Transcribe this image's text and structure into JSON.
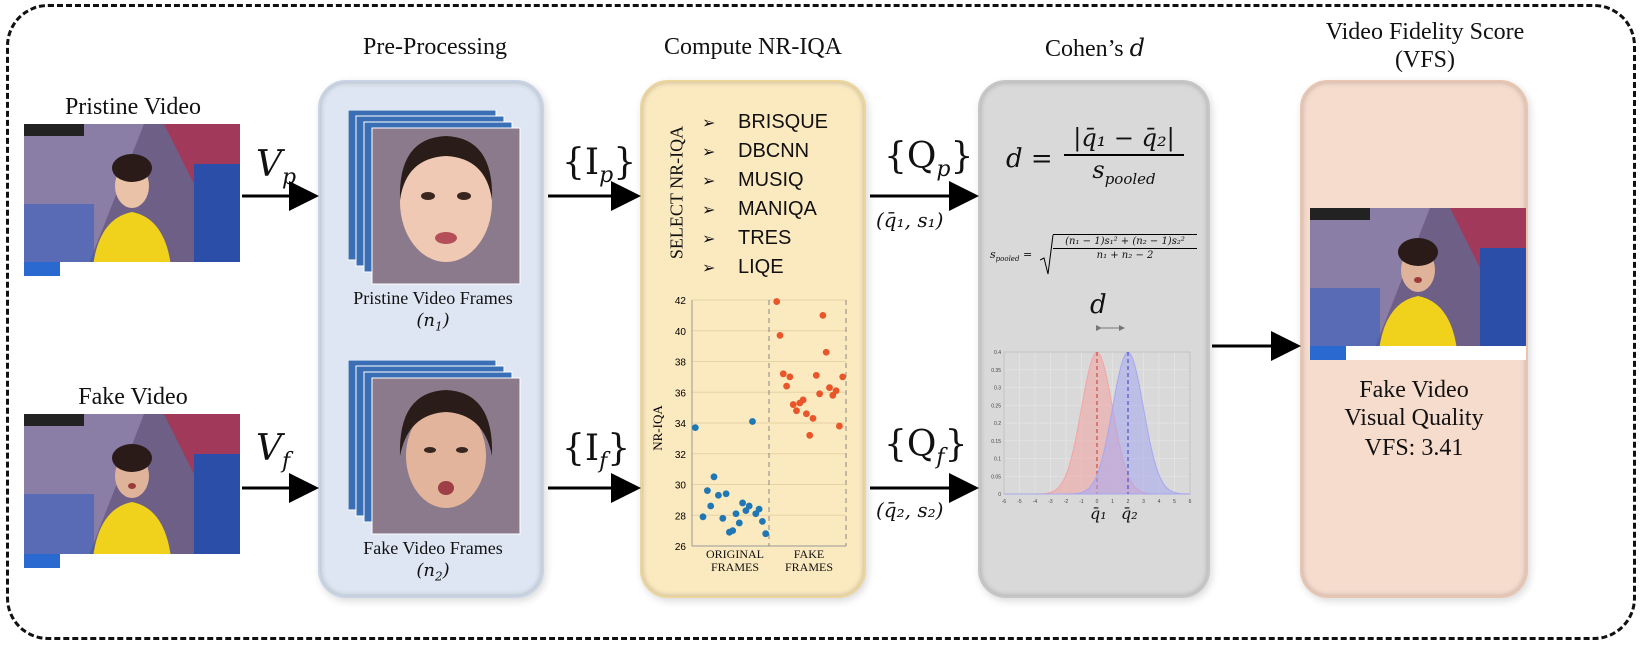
{
  "stages": {
    "preprocessing": "Pre-Processing",
    "nriqa": "Compute NR-IQA",
    "cohen": "Cohen’s",
    "cohen_sym": "d",
    "vfs_line1": "Video Fidelity Score",
    "vfs_line2": "(VFS)"
  },
  "inputs": {
    "pristine": "Pristine Video",
    "fake": "Fake Video",
    "vp": "V",
    "vp_sub": "p",
    "vf": "V",
    "vf_sub": "f"
  },
  "frames": {
    "pristine_label": "Pristine Video Frames",
    "pristine_n": "(n",
    "pristine_n_sub": "1",
    "fake_label": "Fake Video Frames",
    "fake_n": "(n",
    "fake_n_sub": "2",
    "ip": "{I",
    "ip_sub": "p",
    "if": "{I",
    "if_sub": "f"
  },
  "nriqa": {
    "select_label": "SELECT NR-IQA",
    "metrics": [
      "BRISQUE",
      "DBCNN",
      "MUSIQ",
      "MANIQA",
      "TRES",
      "LIQE"
    ]
  },
  "outputs": {
    "qp": "{Q",
    "qp_sub": "p",
    "qp_stats": "(q̄₁, s₁)",
    "qf": "{Q",
    "qf_sub": "f",
    "qf_stats": "(q̄₂, s₂)"
  },
  "formula": {
    "d_lhs": "d =",
    "numerator": "|q̄₁ − q̄₂|",
    "denominator": "s",
    "denominator_sub": "pooled",
    "spooled_lhs": "s",
    "spooled_sub": "pooled",
    "spooled_eq": "=",
    "spooled_num": "(n₁ − 1)s₁² + (n₂ − 1)s₂²",
    "spooled_den": "n₁ + n₂ − 2",
    "d_label": "d",
    "q1_label": "q̄₁",
    "q2_label": "q̄₂"
  },
  "result": {
    "line1": "Fake Video",
    "line2": "Visual Quality",
    "score": "VFS: 3.41"
  },
  "chart_data": [
    {
      "type": "scatter",
      "ylabel": "NR-IQA",
      "ylim": [
        26,
        42
      ],
      "yticks": [
        26,
        28,
        30,
        32,
        34,
        36,
        38,
        40,
        42
      ],
      "xcategories": [
        "ORIGINAL FRAMES",
        "FAKE FRAMES"
      ],
      "series": [
        {
          "color": "#1f77b4",
          "points": [
            [
              0.03,
              33.7
            ],
            [
              0.1,
              27.9
            ],
            [
              0.14,
              29.6
            ],
            [
              0.17,
              28.6
            ],
            [
              0.2,
              30.5
            ],
            [
              0.24,
              29.3
            ],
            [
              0.28,
              27.8
            ],
            [
              0.31,
              29.4
            ],
            [
              0.34,
              26.9
            ],
            [
              0.37,
              27.0
            ],
            [
              0.4,
              28.1
            ],
            [
              0.43,
              27.5
            ],
            [
              0.46,
              28.8
            ],
            [
              0.49,
              28.3
            ],
            [
              0.52,
              28.6
            ],
            [
              0.55,
              34.1
            ],
            [
              0.58,
              28.1
            ],
            [
              0.61,
              28.4
            ],
            [
              0.64,
              27.6
            ],
            [
              0.67,
              26.8
            ]
          ]
        },
        {
          "color": "#e8562a",
          "points": [
            [
              0.77,
              41.9
            ],
            [
              0.8,
              39.7
            ],
            [
              0.83,
              37.2
            ],
            [
              0.86,
              36.4
            ],
            [
              0.89,
              37.0
            ],
            [
              0.92,
              35.2
            ],
            [
              0.95,
              34.8
            ],
            [
              0.98,
              35.3
            ],
            [
              1.01,
              35.5
            ],
            [
              1.04,
              34.6
            ],
            [
              1.07,
              33.2
            ],
            [
              1.1,
              34.3
            ],
            [
              1.13,
              37.1
            ],
            [
              1.16,
              35.9
            ],
            [
              1.19,
              41.0
            ],
            [
              1.22,
              38.6
            ],
            [
              1.25,
              36.3
            ],
            [
              1.28,
              35.8
            ],
            [
              1.31,
              36.1
            ],
            [
              1.34,
              33.8
            ],
            [
              1.37,
              37.0
            ]
          ]
        }
      ]
    },
    {
      "type": "area",
      "xlim": [
        -6,
        6
      ],
      "ylim": [
        0,
        0.4
      ],
      "xticks": [
        -6,
        -5,
        -4,
        -3,
        -2,
        -1,
        0,
        1,
        2,
        3,
        4,
        5,
        6
      ],
      "yticks": [
        0,
        0.05,
        0.1,
        0.15,
        0.2,
        0.25,
        0.3,
        0.35,
        0.4
      ],
      "series": [
        {
          "mean": 0,
          "sd": 1,
          "color": "#f4a3a3"
        },
        {
          "mean": 2,
          "sd": 1,
          "color": "#a6a8f0"
        }
      ]
    }
  ]
}
